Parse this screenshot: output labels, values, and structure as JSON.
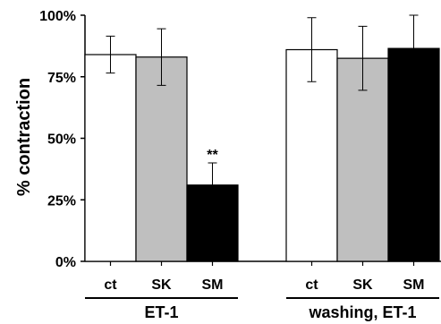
{
  "chart_data": {
    "type": "bar",
    "title": "",
    "xlabel": "",
    "ylabel": "% contraction",
    "ylim": [
      0,
      100
    ],
    "yticks": [
      "0%",
      "25%",
      "50%",
      "75%",
      "100%"
    ],
    "groups": [
      {
        "name": "ET-1",
        "categories": [
          "ct",
          "SK",
          "SM"
        ],
        "values": [
          84,
          83,
          31
        ],
        "errors": [
          7.5,
          11.5,
          9
        ],
        "annotations": [
          "",
          "",
          "**"
        ]
      },
      {
        "name": "washing, ET-1",
        "categories": [
          "ct",
          "SK",
          "SM"
        ],
        "values": [
          86,
          82.5,
          86.5
        ],
        "errors": [
          13,
          13,
          13.5
        ],
        "annotations": [
          "",
          "",
          ""
        ]
      }
    ],
    "colors": {
      "ct": "#ffffff",
      "SK": "#bfbfbf",
      "SM": "#000000"
    },
    "grid": false,
    "legend": "none"
  }
}
